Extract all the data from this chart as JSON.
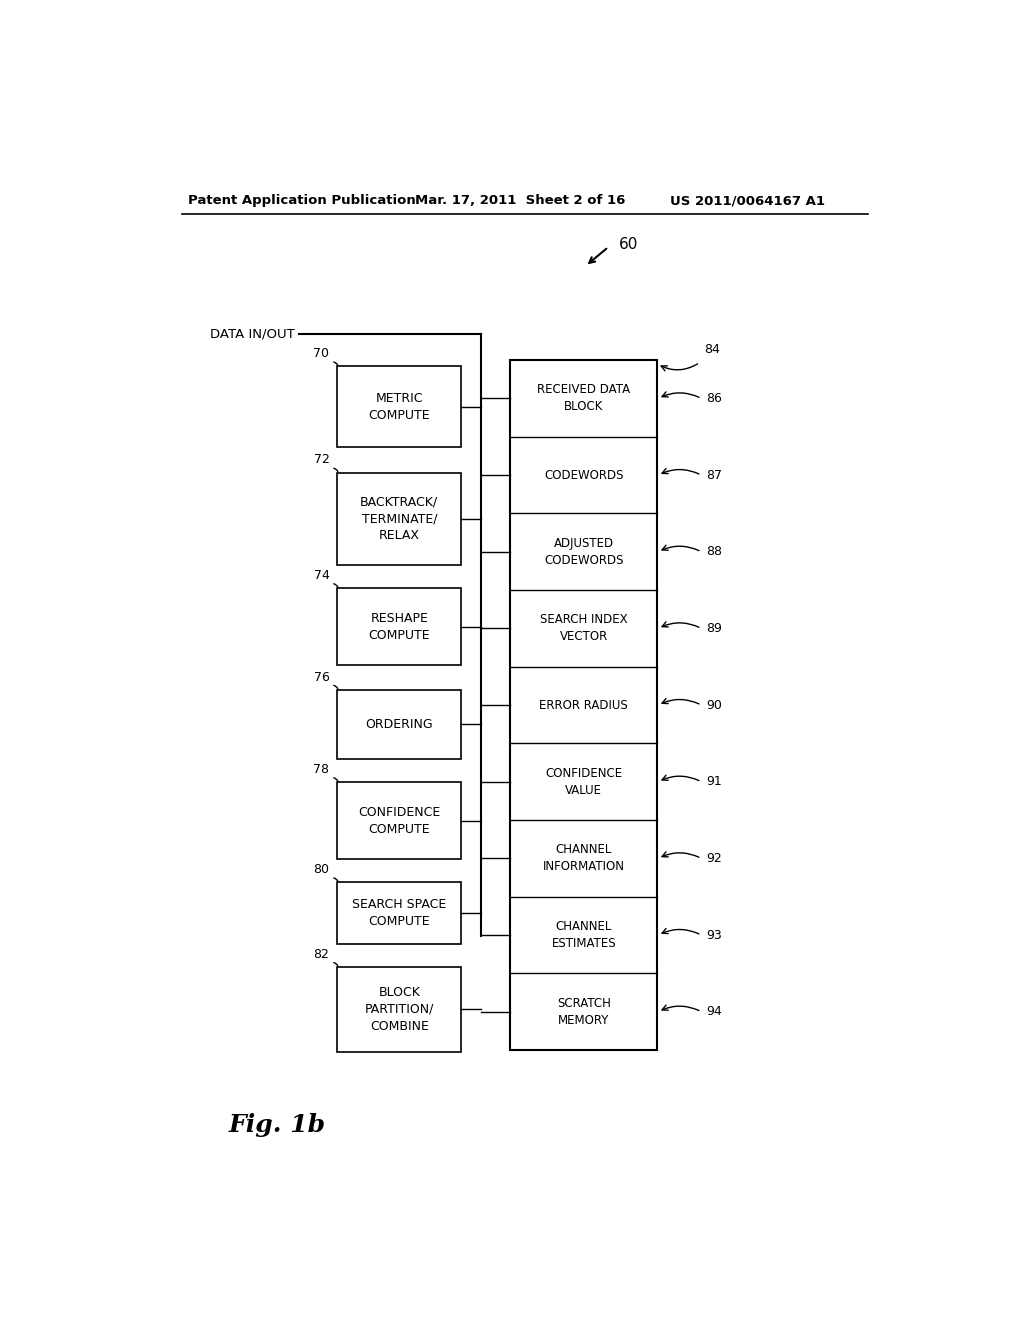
{
  "background_color": "#ffffff",
  "header_left": "Patent Application Publication",
  "header_center": "Mar. 17, 2011  Sheet 2 of 16",
  "header_right": "US 2011/0064167 A1",
  "figure_label": "60",
  "fig_caption": "Fig. 1b",
  "data_in_out_label": "DATA IN/OUT",
  "left_boxes": [
    {
      "label": "METRIC\nCOMPUTE",
      "id": "70"
    },
    {
      "label": "BACKTRACK/\nTERMINATE/\nRELAX",
      "id": "72"
    },
    {
      "label": "RESHAPE\nCOMPUTE",
      "id": "74"
    },
    {
      "label": "ORDERING",
      "id": "76"
    },
    {
      "label": "CONFIDENCE\nCOMPUTE",
      "id": "78"
    },
    {
      "label": "SEARCH SPACE\nCOMPUTE",
      "id": "80"
    },
    {
      "label": "BLOCK\nPARTITION/\nCOMBINE",
      "id": "82"
    }
  ],
  "right_box_id": "84",
  "right_boxes": [
    {
      "label": "RECEIVED DATA\nBLOCK",
      "id": "86"
    },
    {
      "label": "CODEWORDS",
      "id": "87"
    },
    {
      "label": "ADJUSTED\nCODEWORDS",
      "id": "88"
    },
    {
      "label": "SEARCH INDEX\nVECTOR",
      "id": "89"
    },
    {
      "label": "ERROR RADIUS",
      "id": "90"
    },
    {
      "label": "CONFIDENCE\nVALUE",
      "id": "91"
    },
    {
      "label": "CHANNEL\nINFORMATION",
      "id": "92"
    },
    {
      "label": "CHANNEL\nESTIMATES",
      "id": "93"
    },
    {
      "label": "SCRATCH\nMEMORY",
      "id": "94"
    }
  ]
}
